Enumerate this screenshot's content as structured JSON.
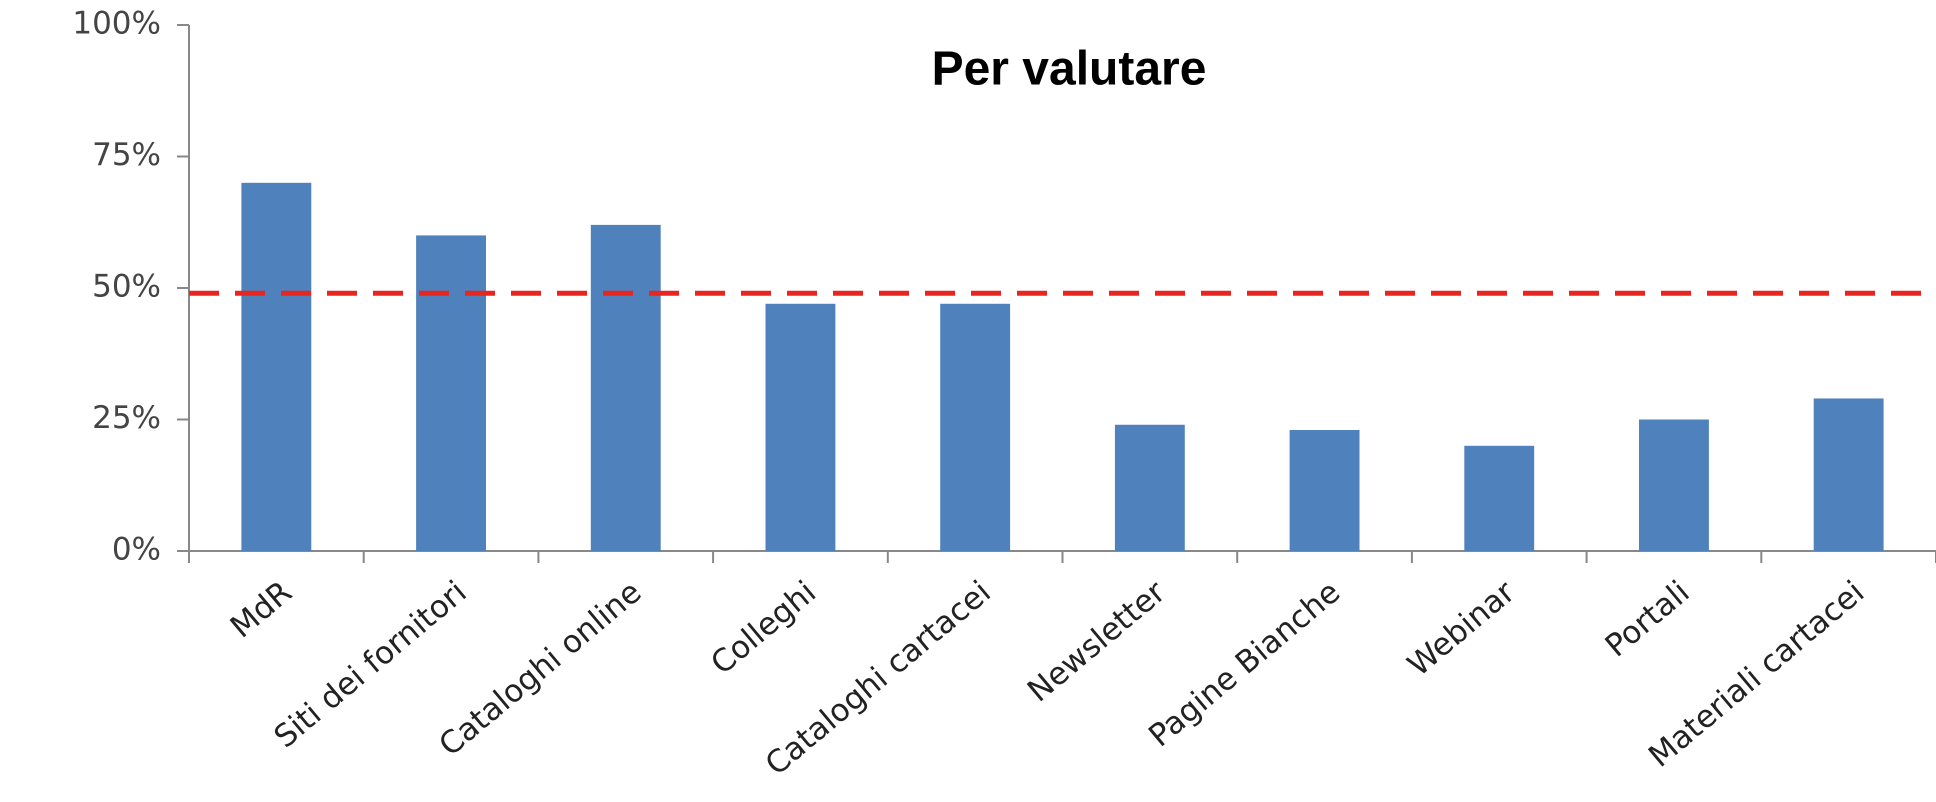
{
  "chart_data": {
    "type": "bar",
    "title": "Per valutare",
    "categories": [
      "MdR",
      "Siti dei fornitori",
      "Cataloghi online",
      "Colleghi",
      "Cataloghi cartacei",
      "Newsletter",
      "Pagine Bianche",
      "Webinar",
      "Portali",
      "Materiali cartacei"
    ],
    "values": [
      70,
      60,
      62,
      47,
      47,
      24,
      23,
      20,
      25,
      29
    ],
    "color": "#4f81bd",
    "ylim": [
      0,
      100
    ],
    "yticks": [
      {
        "value": 0,
        "label": "0%"
      },
      {
        "value": 25,
        "label": "25%"
      },
      {
        "value": 50,
        "label": "50%"
      },
      {
        "value": 75,
        "label": "75%"
      },
      {
        "value": 100,
        "label": "100%"
      }
    ],
    "grid": false,
    "reference_line": {
      "value": 49,
      "color": "#e8261f"
    }
  }
}
